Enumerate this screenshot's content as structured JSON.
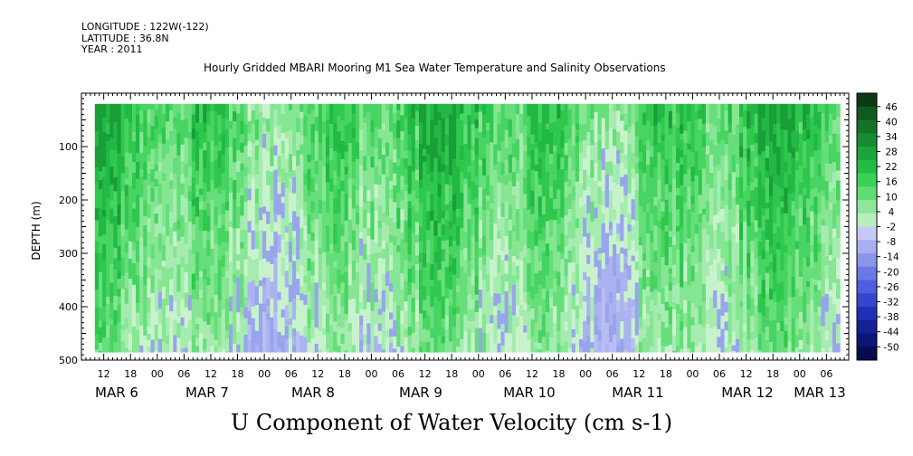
{
  "header": {
    "longitude": "LONGITUDE : 122W(-122)",
    "latitude": "LATITUDE : 36.8N",
    "year": "YEAR : 2011"
  },
  "chart_data": {
    "type": "heatmap",
    "title": "Hourly Gridded MBARI Mooring M1 Sea Water Temperature and Salinity Observations",
    "subtitle": "U Component of Water Velocity (cm s-1)",
    "ylabel": "DEPTH (m)",
    "ylim": [
      500,
      0
    ],
    "y_ticks": [
      100,
      200,
      300,
      400,
      500
    ],
    "x_hour_ticks": [
      "12",
      "18",
      "00",
      "06",
      "12",
      "18",
      "00",
      "06",
      "12",
      "18",
      "00",
      "06",
      "12",
      "18",
      "00",
      "06",
      "12",
      "18",
      "00",
      "06",
      "12",
      "18",
      "00",
      "06",
      "12",
      "18",
      "00",
      "06"
    ],
    "x_date_labels": [
      "MAR  6",
      "MAR  7",
      "MAR  8",
      "MAR  9",
      "MAR 10",
      "MAR 11",
      "MAR 12",
      "MAR 13"
    ],
    "x_range": [
      "2011-03-06T07:00",
      "2011-03-13T11:00"
    ],
    "data_range": [
      "2011-03-06T10:00",
      "2011-03-13T09:00"
    ],
    "depth_range": [
      20,
      485
    ],
    "colorbar": {
      "labels": [
        "46",
        "40",
        "34",
        "28",
        "22",
        "16",
        "10",
        "4",
        "-2",
        "-8",
        "-14",
        "-20",
        "-26",
        "-32",
        "-38",
        "-44",
        "-50"
      ],
      "colors": [
        "#0a3a14",
        "#0f5a1e",
        "#137328",
        "#178c32",
        "#1ca43c",
        "#24bb46",
        "#3bd058",
        "#5fdd74",
        "#8ee69c",
        "#b6efbd",
        "#c6c9f2",
        "#a8aeee",
        "#8a94ea",
        "#6c78e4",
        "#4f5edc",
        "#3446cc",
        "#2030b4",
        "#142296",
        "#0c1674",
        "#060c4e"
      ],
      "min": -50,
      "max": 46
    },
    "field_palette": [
      "#b9bef2",
      "#aab3f0",
      "#98a5ec",
      "#c8f2cc",
      "#a6ecb0",
      "#86e693",
      "#66de7a",
      "#48d462",
      "#2fc84e",
      "#22b844",
      "#1a9e38"
    ],
    "grid": false,
    "legend": "right"
  }
}
